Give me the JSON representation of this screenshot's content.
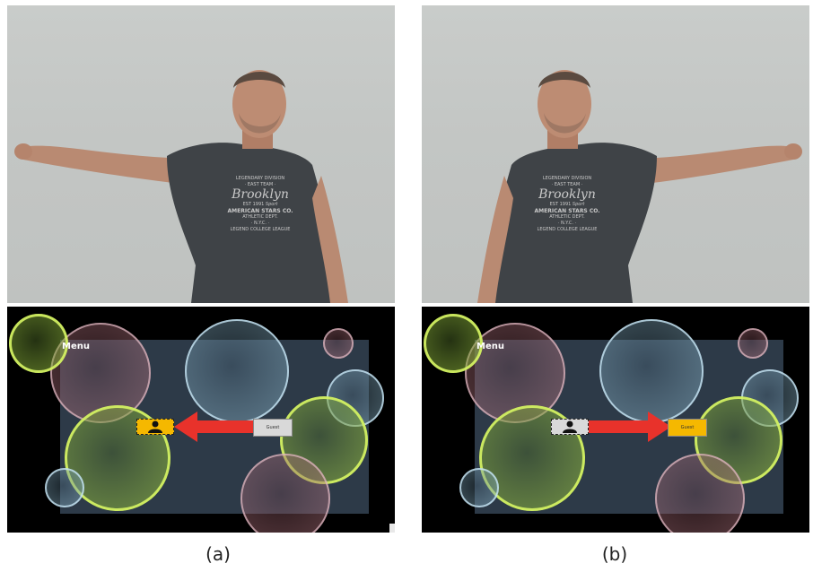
{
  "panels": [
    {
      "id": "a",
      "caption": "(a)",
      "photo": {
        "shirt_text": [
          "LEGENDARY DIVISION",
          "· EAST TEAM ·",
          "Brooklyn",
          "EST 1991",
          "Sport",
          "AMERICAN STARS CO.",
          "ATHLETIC DEPT.",
          "· N.Y.C. ·",
          "LEGEND COLLEGE LEAGUE"
        ],
        "raised_arm": "right-of-subject (image left)"
      },
      "game": {
        "menu_label": "Menu",
        "guest_label": "Guest",
        "arrow_direction": "left",
        "selected": "profile-icon",
        "icon_highlight_color": "#f5b800",
        "guest_highlight_color": "#d9d9d9"
      }
    },
    {
      "id": "b",
      "caption": "(b)",
      "photo": {
        "shirt_text": [
          "LEGENDARY DIVISION",
          "· EAST TEAM ·",
          "Brooklyn",
          "EST 1991",
          "Sport",
          "AMERICAN STARS CO.",
          "ATHLETIC DEPT.",
          "· N.Y.C. ·",
          "LEGEND COLLEGE LEAGUE"
        ],
        "raised_arm": "left-of-subject (image right)"
      },
      "game": {
        "menu_label": "Menu",
        "guest_label": "Guest",
        "arrow_direction": "right",
        "selected": "guest-button",
        "icon_highlight_color": "#d9d9d9",
        "guest_highlight_color": "#f5b800"
      }
    }
  ],
  "colors": {
    "arrow": "#e8322b",
    "board": "#2d3a48",
    "background": "#000000"
  }
}
